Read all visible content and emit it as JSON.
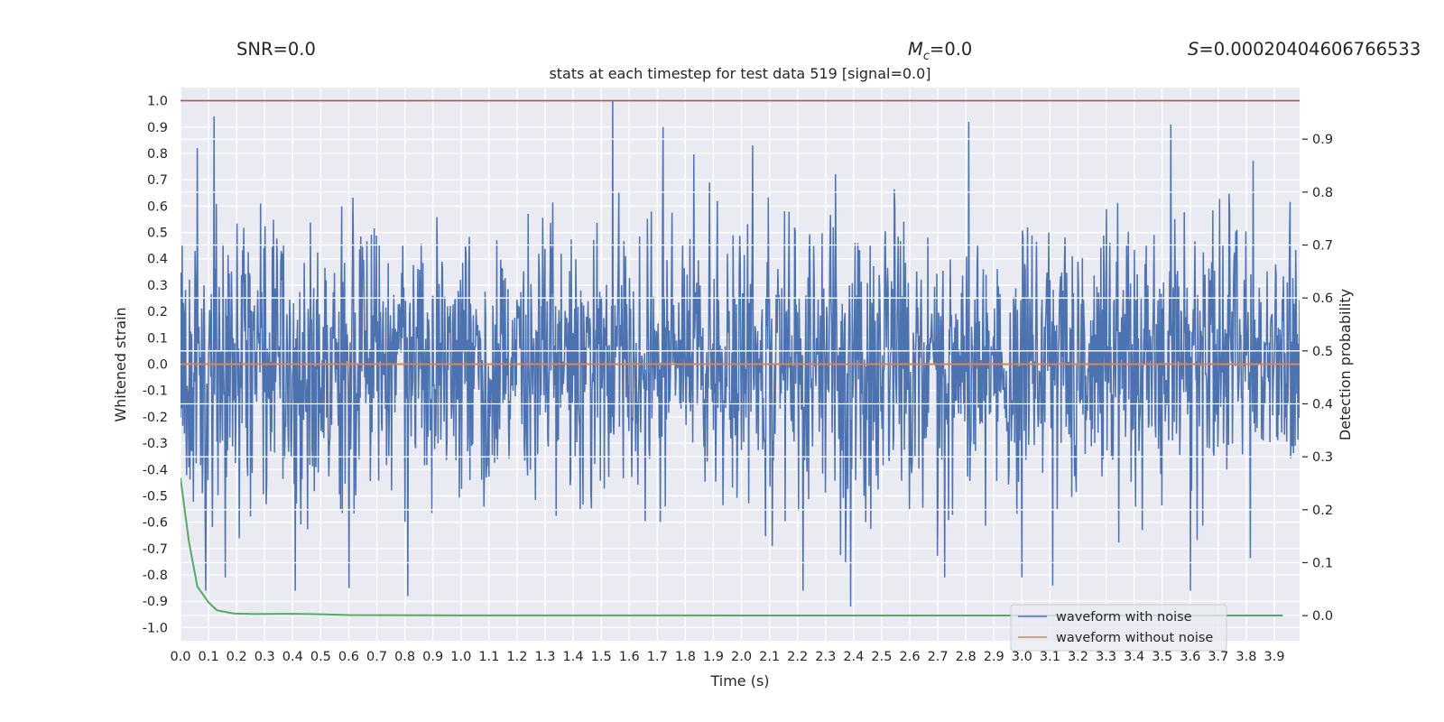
{
  "chart_data": {
    "type": "line",
    "title": "stats at each timestep for test data 519 [signal=0.0]",
    "stats": {
      "snr_label": "SNR=0.0",
      "mc_symbol": "M",
      "mc_subscript": "c",
      "mc_value": "=0.0",
      "s_symbol": "S",
      "s_value": "=0.00020404606766533"
    },
    "xlabel": "Time (s)",
    "ylabel_left": "Whitened strain",
    "ylabel_right": "Detection probability",
    "xlim": [
      0.0,
      3.99
    ],
    "ylim_left": [
      -1.05,
      1.05
    ],
    "ylim_right": [
      -0.0475,
      0.9975
    ],
    "x_ticks": [
      "0.0",
      "0.1",
      "0.2",
      "0.3",
      "0.4",
      "0.5",
      "0.6",
      "0.7",
      "0.8",
      "0.9",
      "1.0",
      "1.1",
      "1.2",
      "1.3",
      "1.4",
      "1.5",
      "1.6",
      "1.7",
      "1.8",
      "1.9",
      "2.0",
      "2.1",
      "2.2",
      "2.3",
      "2.4",
      "2.5",
      "2.6",
      "2.7",
      "2.8",
      "2.9",
      "3.0",
      "3.1",
      "3.2",
      "3.3",
      "3.4",
      "3.5",
      "3.6",
      "3.7",
      "3.8",
      "3.9"
    ],
    "y_ticks_left": [
      "1.0",
      "0.9",
      "0.8",
      "0.7",
      "0.6",
      "0.5",
      "0.4",
      "0.3",
      "0.2",
      "0.1",
      "0.0",
      "-0.1",
      "-0.2",
      "-0.3",
      "-0.4",
      "-0.5",
      "-0.6",
      "-0.7",
      "-0.8",
      "-0.9",
      "-1.0"
    ],
    "y_ticks_right": [
      "0.9",
      "0.8",
      "0.7",
      "0.6",
      "0.5",
      "0.4",
      "0.3",
      "0.2",
      "0.1",
      "0.0"
    ],
    "threshold_line": {
      "axis": "left",
      "y": 1.0,
      "color": "#c44e52"
    },
    "series": [
      {
        "name": "waveform with noise",
        "axis": "left",
        "color": "#4c72b0",
        "x_range": [
          0.0,
          3.99
        ],
        "n_samples": 2000,
        "seed": 519,
        "envelope": [
          -0.92,
          1.0
        ],
        "peaks": [
          {
            "x": 1.54,
            "y": 1.0
          },
          {
            "x": 0.12,
            "y": 0.94
          },
          {
            "x": 2.81,
            "y": 0.92
          },
          {
            "x": 3.53,
            "y": 0.91
          },
          {
            "x": 1.72,
            "y": 0.9
          },
          {
            "x": 0.06,
            "y": 0.82
          },
          {
            "x": 2.04,
            "y": 0.83
          },
          {
            "x": 2.39,
            "y": -0.92
          },
          {
            "x": 0.81,
            "y": -0.88
          },
          {
            "x": 0.41,
            "y": -0.86
          },
          {
            "x": 3.11,
            "y": -0.84
          },
          {
            "x": 3.6,
            "y": -0.86
          },
          {
            "x": 2.22,
            "y": -0.86
          },
          {
            "x": 0.6,
            "y": -0.85
          },
          {
            "x": 0.09,
            "y": -0.86
          }
        ]
      },
      {
        "name": "waveform without noise",
        "axis": "left",
        "color": "#dd8452",
        "x": [
          0.0,
          3.99
        ],
        "y": [
          0.0,
          0.0
        ]
      },
      {
        "name": "Detection probability",
        "axis": "right",
        "color": "#55a868",
        "x": [
          0.0,
          0.03,
          0.06,
          0.1,
          0.13,
          0.19,
          0.26,
          0.4,
          0.5,
          0.6,
          1.0,
          2.0,
          3.0,
          3.93
        ],
        "y": [
          0.26,
          0.14,
          0.055,
          0.025,
          0.01,
          0.004,
          0.003,
          0.0035,
          0.0025,
          0.001,
          0.0005,
          0.0003,
          0.0003,
          0.0003
        ]
      }
    ],
    "legend": {
      "placement": "lower-right",
      "entries": [
        "waveform with noise",
        "waveform without noise"
      ]
    },
    "grid": true,
    "colors": {
      "plot_bg": "#eaeaf2",
      "grid": "#ffffff"
    }
  }
}
